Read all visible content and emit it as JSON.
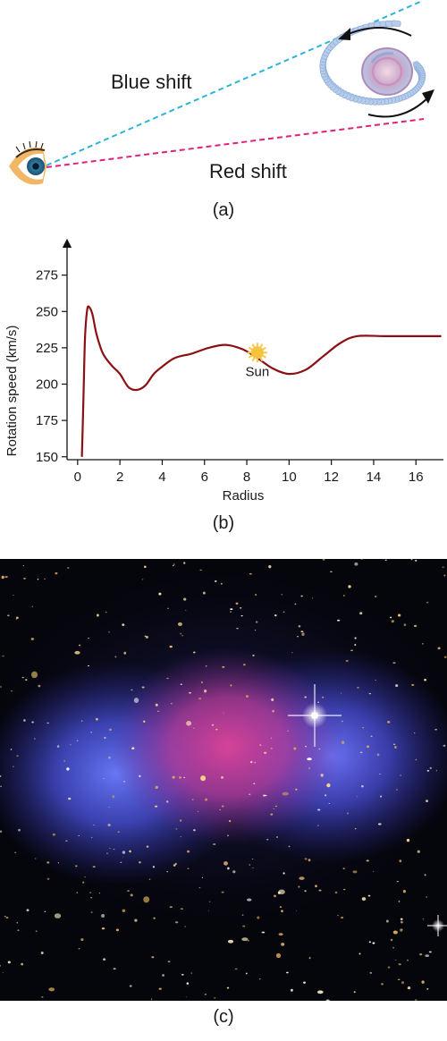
{
  "panel_a": {
    "blue_label": "Blue shift",
    "red_label": "Red shift",
    "caption": "(a)"
  },
  "panel_b": {
    "caption": "(b)",
    "sun_label": "Sun"
  },
  "panel_c": {
    "caption": "(c)"
  },
  "colors": {
    "blue_line": "#2ab6d6",
    "red_line": "#e0207a",
    "curve": "#8b1014",
    "sun": "#f6c341"
  },
  "chart_data": {
    "type": "line",
    "xlabel": "Radius",
    "ylabel": "Rotation speed (km/s)",
    "xlim": [
      -0.5,
      17.3
    ],
    "ylim": [
      148,
      292
    ],
    "xticks": [
      0,
      2,
      4,
      6,
      8,
      10,
      12,
      14,
      16
    ],
    "yticks": [
      150,
      175,
      200,
      225,
      250,
      275
    ],
    "grid": false,
    "series": [
      {
        "x": [
          0.2,
          0.28,
          0.35,
          0.45,
          0.55,
          0.7,
          0.9,
          1.2,
          1.6,
          2.0,
          2.4,
          2.8,
          3.2,
          3.6,
          4.0,
          4.6,
          5.4,
          6.2,
          7.0,
          7.8,
          8.5,
          9.2,
          10.0,
          10.8,
          11.6,
          12.4,
          13.2,
          14.5,
          16.0,
          17.2
        ],
        "values": [
          150,
          192,
          232,
          251,
          253,
          248,
          234,
          221,
          213,
          207,
          198,
          196,
          199,
          207,
          212,
          218,
          221,
          225,
          227,
          224,
          218,
          211,
          207,
          210,
          219,
          228,
          233,
          233,
          233,
          233
        ]
      }
    ],
    "annotations": [
      {
        "text": "Sun",
        "x": 8.5,
        "y": 218
      }
    ]
  }
}
